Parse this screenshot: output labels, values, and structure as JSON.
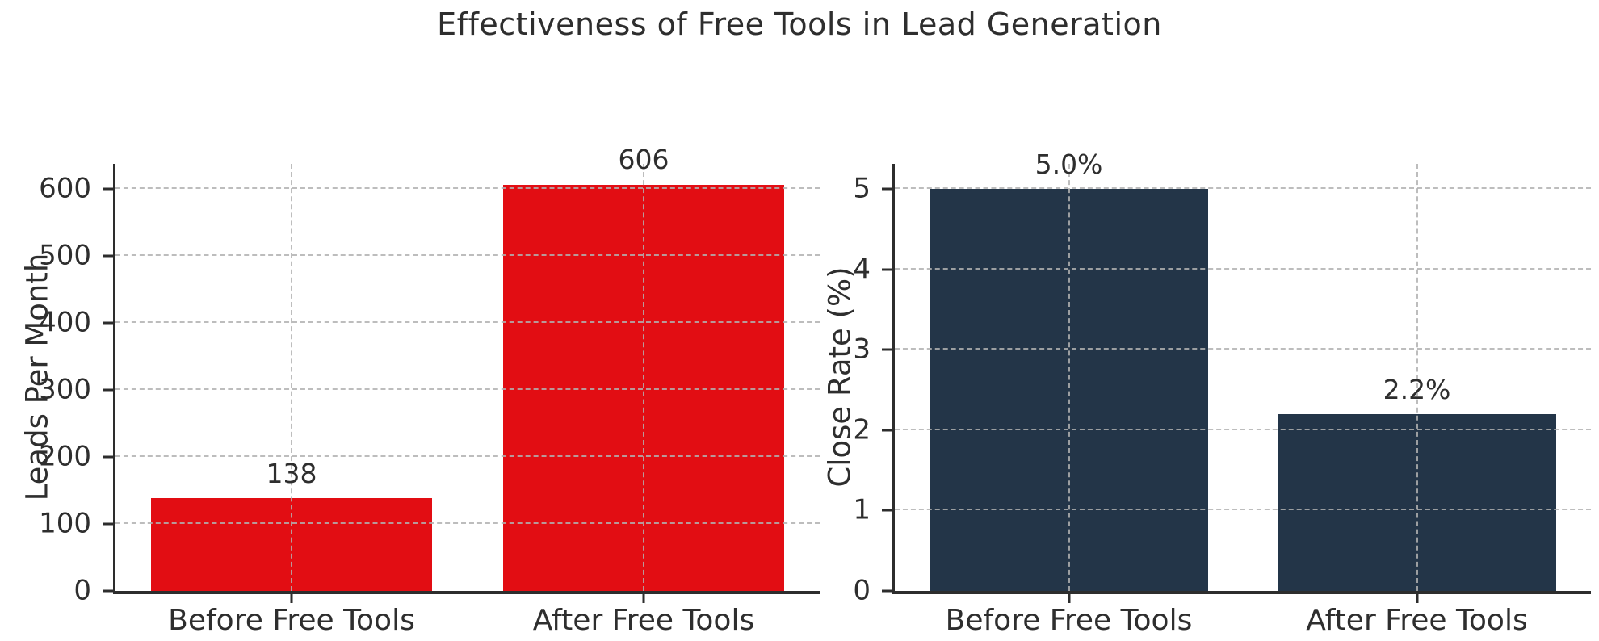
{
  "title": "Effectiveness of Free Tools in Lead Generation",
  "colors": {
    "background": "#ffffff",
    "text": "#2e2e2e",
    "spine": "#2d2d2d",
    "grid": "rgba(178,178,178,0.85)",
    "leads_bar": "#e20d13",
    "close_rate_bar": "#233548"
  },
  "chart_data": [
    {
      "type": "bar",
      "ylabel": "Leads Per Month",
      "xlabel": "",
      "categories": [
        "Before Free Tools",
        "After Free Tools"
      ],
      "values": [
        138,
        606
      ],
      "bar_labels": [
        "138",
        "606"
      ],
      "yticks": [
        0,
        100,
        200,
        300,
        400,
        500,
        600
      ],
      "ylim": [
        0,
        637
      ],
      "bar_color": "#e20d13",
      "grid": "dashed",
      "legend": "none"
    },
    {
      "type": "bar",
      "ylabel": "Close Rate (%)",
      "xlabel": "",
      "categories": [
        "Before Free Tools",
        "After Free Tools"
      ],
      "values": [
        5.0,
        2.2
      ],
      "bar_labels": [
        "5.0%",
        "2.2%"
      ],
      "yticks": [
        0,
        1,
        2,
        3,
        4,
        5
      ],
      "ylim": [
        0,
        5.31
      ],
      "bar_color": "#233548",
      "grid": "dashed",
      "legend": "none"
    }
  ]
}
